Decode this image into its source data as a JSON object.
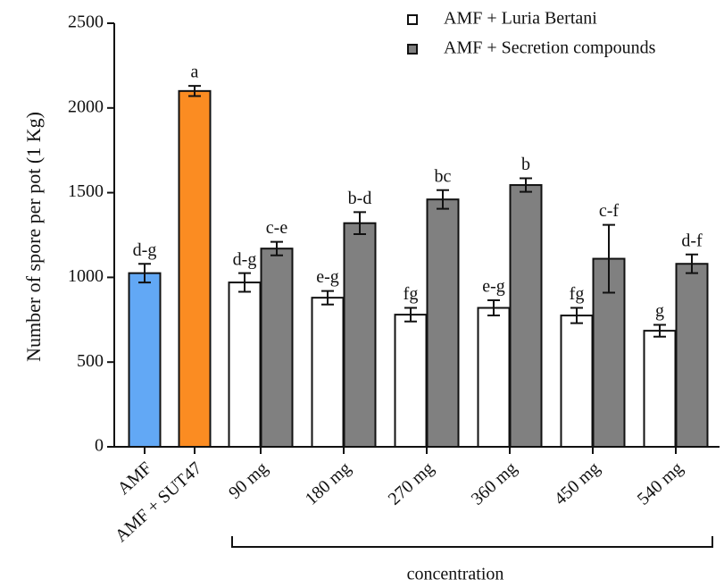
{
  "chart_data": {
    "type": "bar",
    "y_label": "Number of spore per pot (1 Kg)",
    "x_label": "concentration",
    "ylim": [
      0,
      2500
    ],
    "yticks": [
      0,
      500,
      1000,
      1500,
      2000,
      2500
    ],
    "legend": "top-right",
    "controls": {
      "categories": [
        "AMF",
        "AMF + SUT47"
      ],
      "values": [
        1025,
        2100
      ],
      "errors": [
        55,
        30
      ],
      "letters": [
        "d-g",
        "a"
      ],
      "colors": [
        "#62a8f5",
        "#fb8c22"
      ]
    },
    "categories": [
      "90 mg",
      "180 mg",
      "270 mg",
      "360 mg",
      "450 mg",
      "540 mg"
    ],
    "series": [
      {
        "name": "AMF + Luria Bertani",
        "color": "#ffffff",
        "values": [
          970,
          880,
          780,
          820,
          775,
          685
        ],
        "errors": [
          55,
          40,
          40,
          45,
          45,
          35
        ],
        "letters": [
          "d-g",
          "e-g",
          "fg",
          "e-g",
          "fg",
          "g"
        ]
      },
      {
        "name": "AMF + Secretion compounds",
        "color": "#808080",
        "values": [
          1170,
          1320,
          1460,
          1545,
          1110,
          1080
        ],
        "errors": [
          40,
          65,
          55,
          40,
          200,
          55
        ],
        "letters": [
          "c-e",
          "b-d",
          "bc",
          "b",
          "c-f",
          "d-f"
        ]
      }
    ]
  }
}
